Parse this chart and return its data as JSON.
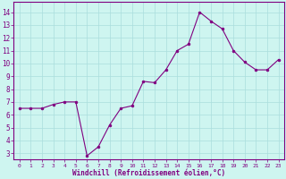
{
  "x": [
    0,
    1,
    2,
    3,
    4,
    5,
    6,
    7,
    8,
    9,
    10,
    11,
    12,
    13,
    14,
    15,
    16,
    17,
    18,
    19,
    20,
    21,
    22,
    23
  ],
  "y": [
    6.5,
    6.5,
    6.5,
    6.8,
    7.0,
    7.0,
    2.8,
    3.5,
    5.2,
    6.5,
    6.7,
    8.6,
    8.5,
    9.5,
    11.0,
    11.5,
    14.0,
    13.3,
    12.7,
    11.0,
    10.1,
    9.5,
    9.5,
    10.3
  ],
  "line_color": "#800080",
  "marker": "o",
  "marker_size": 2.0,
  "background_color": "#cef5f0",
  "grid_color": "#aadddd",
  "xlabel": "Windchill (Refroidissement éolien,°C)",
  "xlabel_color": "#800080",
  "ylabel_ticks": [
    3,
    4,
    5,
    6,
    7,
    8,
    9,
    10,
    11,
    12,
    13,
    14
  ],
  "ylim": [
    2.5,
    14.8
  ],
  "xlim": [
    -0.5,
    23.5
  ],
  "xtick_labels": [
    "0",
    "1",
    "2",
    "3",
    "4",
    "5",
    "6",
    "7",
    "8",
    "9",
    "10",
    "11",
    "12",
    "13",
    "14",
    "15",
    "16",
    "17",
    "18",
    "19",
    "20",
    "21",
    "22",
    "23"
  ],
  "tick_color": "#800080",
  "spine_color": "#800080"
}
